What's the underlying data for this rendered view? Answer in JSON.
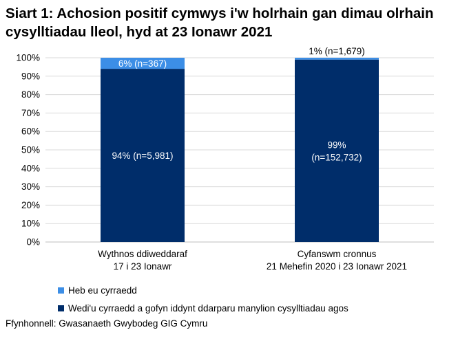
{
  "title": "Siart 1: Achosion positif cymwys i'w holrhain gan dimau olrhain cysylltiadau lleol, hyd at 23 Ionawr 2021",
  "source": "Ffynhonnell: Gwasanaeth Gwybodeg GIG Cymru",
  "colors": {
    "reached": "#002d6a",
    "not_reached": "#3c8ee6"
  },
  "chart_data": {
    "type": "bar",
    "stacked": true,
    "categories": [
      [
        "Wythnos ddiweddaraf",
        "17 i 23 Ionawr"
      ],
      [
        "Cyfanswm cronnus",
        "21 Mehefin 2020 i 23 Ionawr 2021"
      ]
    ],
    "series": [
      {
        "name": "Wedi'u cyrraedd a gofyn iddynt ddarparu manylion cysylltiadau agos",
        "values": [
          94,
          99
        ],
        "labels": [
          [
            "94% (n=5,981)"
          ],
          [
            "99%",
            "(n=152,732)"
          ]
        ]
      },
      {
        "name": "Heb eu cyrraedd",
        "values": [
          6,
          1
        ],
        "labels": [
          [
            "6% (n=367)"
          ],
          [
            "1% (n=1,679)"
          ]
        ]
      }
    ],
    "yticks": [
      "0%",
      "10%",
      "20%",
      "30%",
      "40%",
      "50%",
      "60%",
      "70%",
      "80%",
      "90%",
      "100%"
    ],
    "ylim": [
      0,
      100
    ],
    "legend_position": "bottom"
  }
}
